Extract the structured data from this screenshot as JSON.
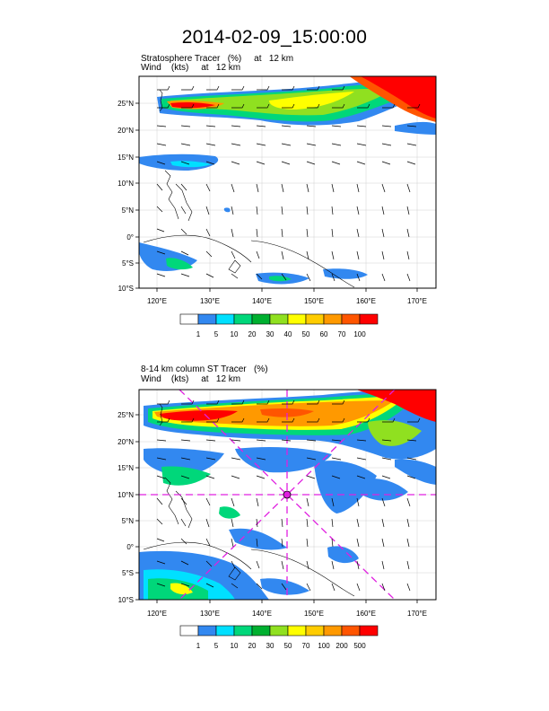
{
  "title": "2014-02-09_15:00:00",
  "panels": [
    {
      "name": "top",
      "line1": "Stratosphere Tracer   (%)     at   12 km",
      "line2": "Wind    (kts)     at   12 km",
      "lat_labels": [
        "25°N",
        "20°N",
        "15°N",
        "10°N",
        "5°N",
        "0°",
        "5°S",
        "10°S"
      ],
      "lon_labels": [
        "120°E",
        "130°E",
        "140°E",
        "150°E",
        "160°E",
        "170°E"
      ],
      "colorbar_labels": [
        "1",
        "5",
        "10",
        "20",
        "30",
        "40",
        "50",
        "60",
        "70",
        "100"
      ]
    },
    {
      "name": "bottom",
      "line1": "8-14 km column ST Tracer   (%)",
      "line2": "Wind    (kts)     at   12 km",
      "lat_labels": [
        "25°N",
        "20°N",
        "15°N",
        "10°N",
        "5°N",
        "0°",
        "5°S",
        "10°S"
      ],
      "lon_labels": [
        "120°E",
        "130°E",
        "140°E",
        "150°E",
        "160°E",
        "170°E"
      ],
      "colorbar_labels": [
        "1",
        "5",
        "10",
        "20",
        "30",
        "50",
        "70",
        "100",
        "200",
        "500"
      ]
    }
  ],
  "colors": {
    "c0": "#ffffff",
    "c1": "#3288f0",
    "c2": "#00e0ff",
    "c3": "#00d77a",
    "c4": "#00b030",
    "c5": "#90e020",
    "c6": "#ffff00",
    "c7": "#ffcc00",
    "c8": "#ff9900",
    "c9": "#ff5500",
    "c10": "#ff0000",
    "marker": "#e020e0",
    "coast": "#000000"
  }
}
